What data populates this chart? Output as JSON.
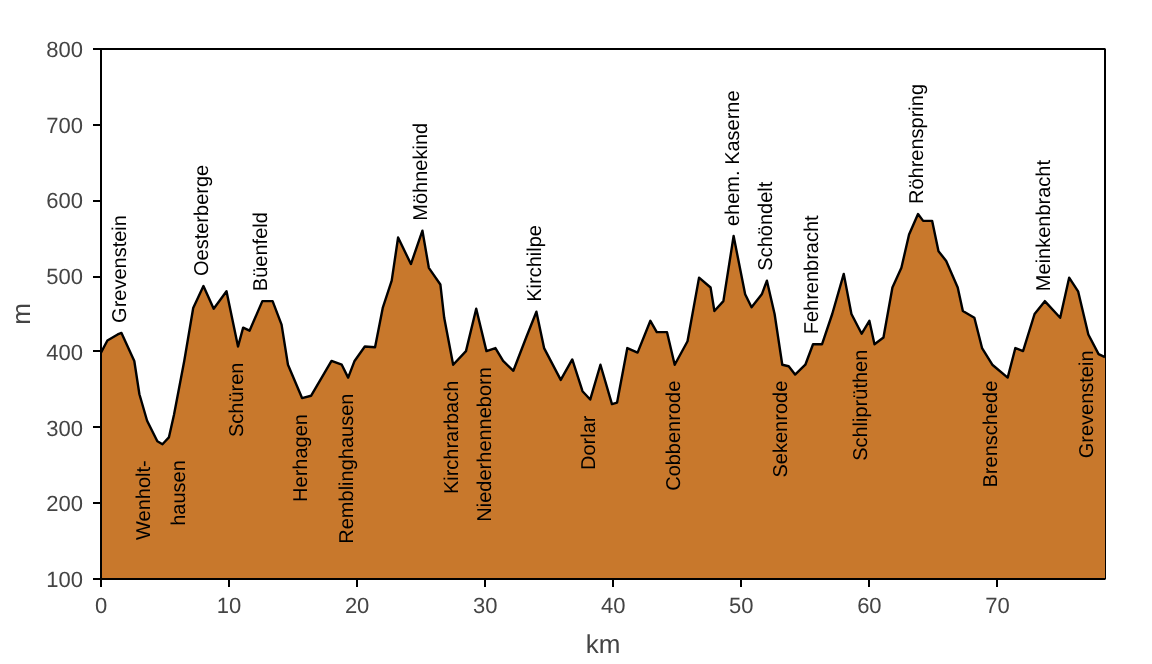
{
  "chart_data": {
    "type": "area",
    "xlabel": "km",
    "ylabel": "m",
    "x": [
      0,
      0.5,
      1.3,
      1.6,
      2.6,
      3.0,
      3.6,
      4.4,
      4.8,
      5.3,
      5.7,
      6.5,
      7.2,
      8.0,
      8.8,
      9.8,
      10.7,
      11.1,
      11.6,
      12.6,
      13.4,
      14.1,
      14.6,
      15.7,
      16.4,
      18.0,
      18.8,
      19.3,
      19.8,
      20.6,
      21.4,
      22.0,
      22.7,
      23.2,
      24.2,
      25.1,
      25.6,
      26.5,
      26.8,
      27.5,
      28.5,
      29.3,
      30.1,
      30.8,
      31.4,
      32.2,
      33.2,
      34.0,
      34.6,
      35.9,
      36.8,
      37.6,
      38.2,
      39.0,
      39.9,
      40.3,
      41.1,
      41.9,
      42.9,
      43.4,
      44.2,
      44.8,
      45.8,
      46.7,
      47.6,
      47.9,
      48.6,
      49.4,
      50.3,
      50.8,
      51.6,
      52.0,
      52.6,
      53.2,
      53.7,
      54.2,
      55.0,
      55.6,
      56.3,
      57.1,
      58.0,
      58.6,
      59.4,
      60.0,
      60.4,
      61.1,
      61.8,
      62.5,
      63.1,
      63.8,
      64.2,
      64.9,
      65.4,
      66.0,
      66.9,
      67.3,
      68.2,
      68.8,
      69.6,
      70.8,
      71.4,
      72.0,
      72.9,
      73.7,
      74.9,
      75.6,
      76.3,
      77.1,
      77.9,
      78.4
    ],
    "series": [
      {
        "color": "#c8782c",
        "values": [
          399,
          415,
          423,
          425,
          388,
          344,
          309,
          282,
          278,
          287,
          317,
          388,
          458,
          487,
          457,
          480,
          407,
          432,
          428,
          467,
          467,
          436,
          383,
          339,
          342,
          388,
          383,
          366,
          388,
          407,
          406,
          458,
          494,
          551,
          516,
          560,
          511,
          489,
          445,
          383,
          401,
          457,
          401,
          405,
          388,
          375,
          419,
          453,
          405,
          363,
          390,
          348,
          337,
          383,
          331,
          333,
          405,
          399,
          441,
          426,
          426,
          383,
          414,
          498,
          485,
          454,
          467,
          553,
          476,
          459,
          476,
          494,
          450,
          383,
          381,
          370,
          383,
          410,
          410,
          450,
          503,
          450,
          424,
          441,
          410,
          419,
          485,
          511,
          555,
          582,
          573,
          573,
          533,
          520,
          485,
          454,
          445,
          405,
          383,
          366,
          405,
          401,
          450,
          467,
          445,
          498,
          480,
          423,
          397,
          393
        ]
      }
    ],
    "xlim": [
      0,
      78.4
    ],
    "ylim": [
      100,
      800
    ],
    "xticks": [
      0,
      10,
      20,
      30,
      40,
      50,
      60,
      70
    ],
    "yticks": [
      100,
      200,
      300,
      400,
      500,
      600,
      700,
      800
    ],
    "grid": false,
    "annotations": [
      {
        "text": "Grevenstein",
        "x": 1.6,
        "y": 425
      },
      {
        "text": "Wenholt-\nhausen",
        "x": 4.8,
        "y": 278
      },
      {
        "text": "Oesterberge",
        "x": 8.0,
        "y": 487
      },
      {
        "text": "Schüren",
        "x": 10.7,
        "y": 407
      },
      {
        "text": "Büenfeld",
        "x": 12.6,
        "y": 467
      },
      {
        "text": "Herhagen",
        "x": 15.7,
        "y": 339
      },
      {
        "text": "Remblinghausen",
        "x": 19.3,
        "y": 366
      },
      {
        "text": "Möhnekind",
        "x": 25.1,
        "y": 560
      },
      {
        "text": "Kirchrarbach",
        "x": 27.5,
        "y": 383
      },
      {
        "text": "Niederhenneborn",
        "x": 30.1,
        "y": 401
      },
      {
        "text": "Kirchilpe",
        "x": 34.0,
        "y": 453
      },
      {
        "text": "Dorlar",
        "x": 38.2,
        "y": 337
      },
      {
        "text": "Cobbenrode",
        "x": 44.8,
        "y": 383
      },
      {
        "text": "ehem. Kaserne",
        "x": 49.4,
        "y": 553
      },
      {
        "text": "Schöndelt",
        "x": 52.0,
        "y": 494
      },
      {
        "text": "Sekenrode",
        "x": 53.2,
        "y": 383
      },
      {
        "text": "Fehrenbracht",
        "x": 55.6,
        "y": 410
      },
      {
        "text": "Schliprüthen",
        "x": 59.4,
        "y": 424
      },
      {
        "text": "Röhrenspring",
        "x": 63.8,
        "y": 582
      },
      {
        "text": "Brenschede",
        "x": 69.6,
        "y": 383
      },
      {
        "text": "Meinkenbracht",
        "x": 73.7,
        "y": 467
      },
      {
        "text": "Grevenstein",
        "x": 77.1,
        "y": 423
      }
    ]
  }
}
